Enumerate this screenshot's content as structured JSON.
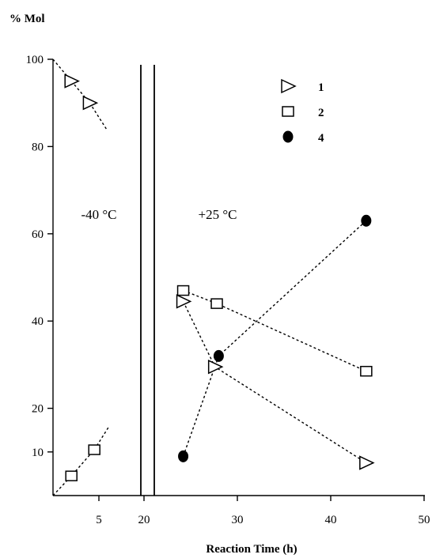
{
  "chart_data": {
    "type": "scatter",
    "title": "",
    "xlabel": "Reaction Time (h)",
    "ylabel": "% Mol",
    "ylim": [
      0,
      100
    ],
    "axis_break": {
      "from": 5,
      "to": 20
    },
    "x_ticks": [
      "5",
      "20",
      "30",
      "40",
      "50"
    ],
    "y_ticks": [
      "10",
      "20",
      "40",
      "60",
      "80",
      "100"
    ],
    "regions": [
      {
        "label": "-40 °C"
      },
      {
        "label": "+25 °C"
      }
    ],
    "legend_position": "top-right",
    "series": [
      {
        "name": "1",
        "marker": "triangle-right",
        "segments": [
          [
            [
              0,
              100
            ],
            [
              2,
              95
            ],
            [
              4,
              90
            ],
            [
              7.5,
              84
            ]
          ],
          [
            [
              24.2,
              44.5
            ],
            [
              27.6,
              29.5
            ],
            [
              43.8,
              7.5
            ]
          ]
        ],
        "points": [
          [
            2,
            95
          ],
          [
            4,
            90
          ],
          [
            24.2,
            44.5
          ],
          [
            27.6,
            29.5
          ],
          [
            43.8,
            7.5
          ]
        ]
      },
      {
        "name": "2",
        "marker": "square",
        "segments": [
          [
            [
              0,
              0
            ],
            [
              2,
              4.5
            ],
            [
              4.5,
              10.5
            ],
            [
              8.5,
              16
            ]
          ],
          [
            [
              24.2,
              47
            ],
            [
              27.8,
              44
            ],
            [
              43.8,
              28.5
            ]
          ]
        ],
        "points": [
          [
            2,
            4.5
          ],
          [
            4.5,
            10.5
          ],
          [
            24.2,
            47
          ],
          [
            27.8,
            44
          ],
          [
            43.8,
            28.5
          ]
        ]
      },
      {
        "name": "4",
        "marker": "circle-filled",
        "segments": [
          [
            [
              24.2,
              9
            ],
            [
              28.0,
              32
            ],
            [
              43.8,
              63
            ]
          ]
        ],
        "points": [
          [
            24.2,
            9
          ],
          [
            28.0,
            32
          ],
          [
            43.8,
            63
          ]
        ]
      }
    ]
  }
}
